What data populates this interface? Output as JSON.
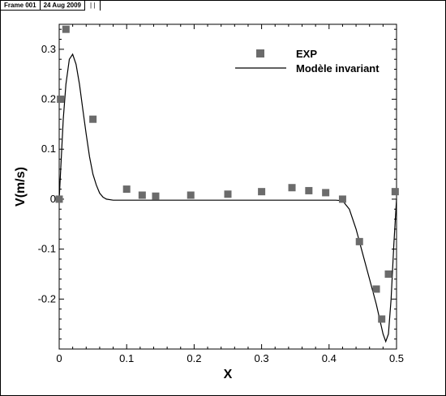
{
  "header": {
    "frame_label": "Frame 001",
    "date_label": "24 Aug 2009",
    "marks": "| |"
  },
  "chart_data": {
    "type": "scatter",
    "xlabel": "X",
    "ylabel": "V(m/s)",
    "xlim": [
      0,
      0.5
    ],
    "ylim": [
      -0.3,
      0.35
    ],
    "xticks": [
      0,
      0.1,
      0.2,
      0.3,
      0.4,
      0.5
    ],
    "xtick_labels": [
      "0",
      "0.1",
      "0.2",
      "0.3",
      "0.4",
      "0.5"
    ],
    "yticks": [
      -0.2,
      -0.1,
      0,
      0.1,
      0.2,
      0.3
    ],
    "ytick_labels": [
      "-0.2",
      "-0.1",
      "0",
      "0.1",
      "0.2",
      "0.3"
    ],
    "grid": false,
    "legend_position": "top-right",
    "series": [
      {
        "name": "EXP",
        "kind": "scatter",
        "marker": "square",
        "color": "#6b6b6b",
        "points": [
          [
            0.0,
            0.0
          ],
          [
            0.002,
            0.2
          ],
          [
            0.01,
            0.34
          ],
          [
            0.05,
            0.16
          ],
          [
            0.1,
            0.02
          ],
          [
            0.123,
            0.008
          ],
          [
            0.143,
            0.006
          ],
          [
            0.195,
            0.008
          ],
          [
            0.25,
            0.01
          ],
          [
            0.3,
            0.015
          ],
          [
            0.345,
            0.023
          ],
          [
            0.37,
            0.017
          ],
          [
            0.395,
            0.013
          ],
          [
            0.42,
            0.0
          ],
          [
            0.445,
            -0.085
          ],
          [
            0.47,
            -0.18
          ],
          [
            0.478,
            -0.24
          ],
          [
            0.488,
            -0.15
          ],
          [
            0.498,
            0.015
          ]
        ]
      },
      {
        "name": "Modèle invariant",
        "kind": "line",
        "color": "#000000",
        "points": [
          [
            0.0,
            0.0
          ],
          [
            0.003,
            0.08
          ],
          [
            0.006,
            0.16
          ],
          [
            0.01,
            0.23
          ],
          [
            0.015,
            0.28
          ],
          [
            0.02,
            0.29
          ],
          [
            0.025,
            0.27
          ],
          [
            0.03,
            0.23
          ],
          [
            0.035,
            0.18
          ],
          [
            0.04,
            0.13
          ],
          [
            0.045,
            0.085
          ],
          [
            0.05,
            0.05
          ],
          [
            0.055,
            0.028
          ],
          [
            0.06,
            0.012
          ],
          [
            0.065,
            0.004
          ],
          [
            0.07,
            0.0
          ],
          [
            0.08,
            -0.002
          ],
          [
            0.1,
            -0.002
          ],
          [
            0.2,
            -0.002
          ],
          [
            0.3,
            -0.002
          ],
          [
            0.41,
            -0.002
          ],
          [
            0.42,
            -0.003
          ],
          [
            0.43,
            -0.02
          ],
          [
            0.44,
            -0.06
          ],
          [
            0.45,
            -0.11
          ],
          [
            0.46,
            -0.16
          ],
          [
            0.47,
            -0.21
          ],
          [
            0.475,
            -0.24
          ],
          [
            0.48,
            -0.27
          ],
          [
            0.484,
            -0.285
          ],
          [
            0.488,
            -0.27
          ],
          [
            0.492,
            -0.2
          ],
          [
            0.496,
            -0.09
          ],
          [
            0.5,
            0.0
          ]
        ]
      }
    ]
  }
}
